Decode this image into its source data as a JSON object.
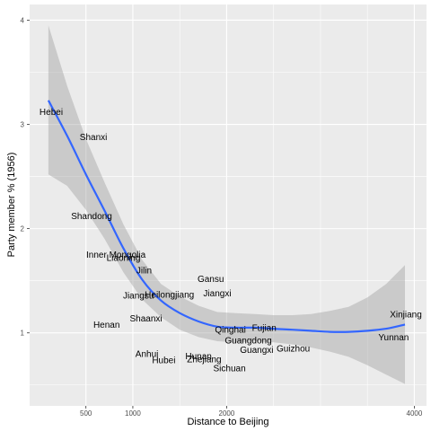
{
  "chart_data": {
    "type": "scatter",
    "title": "",
    "xlabel": "Distance to Beijing",
    "ylabel": "Party member % (1956)",
    "xlim": [
      -100,
      4130
    ],
    "ylim": [
      0.3,
      4.15
    ],
    "x_ticks": [
      500,
      1000,
      1500,
      2000,
      2500,
      3000,
      3500,
      4000
    ],
    "x_tick_labels": [
      "500",
      "1000",
      "2000",
      "4000"
    ],
    "x_tick_label_values": [
      500,
      1000,
      2000,
      4000
    ],
    "y_ticks": [
      1,
      2,
      3,
      4
    ],
    "y_tick_labels": [
      "1",
      "2",
      "3",
      "4"
    ],
    "grid": true,
    "colors": {
      "panel": "#ebebeb",
      "grid_major": "#ffffff",
      "ribbon": "#999999",
      "smooth_line": "#3366ff"
    },
    "points": [
      {
        "label": "Hebei",
        "x": 130,
        "y": 3.12
      },
      {
        "label": "Shanxi",
        "x": 580,
        "y": 2.88
      },
      {
        "label": "Shandong",
        "x": 560,
        "y": 2.12
      },
      {
        "label": "Inner Mongolia",
        "x": 820,
        "y": 1.75
      },
      {
        "label": "Liaoning",
        "x": 900,
        "y": 1.72
      },
      {
        "label": "Jilin",
        "x": 1120,
        "y": 1.6
      },
      {
        "label": "Gansu",
        "x": 1830,
        "y": 1.52
      },
      {
        "label": "Jiangsu",
        "x": 1060,
        "y": 1.36
      },
      {
        "label": "Heilongjiang",
        "x": 1390,
        "y": 1.37
      },
      {
        "label": "Jiangxi",
        "x": 1900,
        "y": 1.38
      },
      {
        "label": "Xinjiang",
        "x": 3910,
        "y": 1.18
      },
      {
        "label": "Henan",
        "x": 720,
        "y": 1.08
      },
      {
        "label": "Shaanxi",
        "x": 1140,
        "y": 1.14
      },
      {
        "label": "Fujian",
        "x": 2400,
        "y": 1.05
      },
      {
        "label": "Qinghai",
        "x": 2040,
        "y": 1.03
      },
      {
        "label": "Yunnan",
        "x": 3780,
        "y": 0.96
      },
      {
        "label": "Guangdong",
        "x": 2230,
        "y": 0.93
      },
      {
        "label": "Guangxi",
        "x": 2320,
        "y": 0.84
      },
      {
        "label": "Guizhou",
        "x": 2710,
        "y": 0.85
      },
      {
        "label": "Anhui",
        "x": 1150,
        "y": 0.8
      },
      {
        "label": "Hunan",
        "x": 1700,
        "y": 0.78
      },
      {
        "label": "Hubei",
        "x": 1330,
        "y": 0.74
      },
      {
        "label": "Zhejiang",
        "x": 1760,
        "y": 0.75
      },
      {
        "label": "Sichuan",
        "x": 2030,
        "y": 0.66
      }
    ],
    "smooth": {
      "x": [
        100,
        300,
        500,
        700,
        900,
        1100,
        1300,
        1500,
        1700,
        1900,
        2100,
        2300,
        2500,
        2700,
        2900,
        3100,
        3300,
        3500,
        3700,
        3900
      ],
      "y": [
        3.23,
        2.89,
        2.52,
        2.17,
        1.81,
        1.51,
        1.31,
        1.19,
        1.11,
        1.06,
        1.05,
        1.05,
        1.04,
        1.03,
        1.02,
        1.01,
        1.01,
        1.02,
        1.04,
        1.08
      ],
      "lower": [
        2.52,
        2.41,
        2.18,
        1.9,
        1.58,
        1.32,
        1.15,
        1.03,
        0.96,
        0.92,
        0.91,
        0.92,
        0.91,
        0.89,
        0.86,
        0.82,
        0.77,
        0.69,
        0.6,
        0.51
      ],
      "upper": [
        3.95,
        3.37,
        2.86,
        2.44,
        2.04,
        1.7,
        1.47,
        1.35,
        1.26,
        1.2,
        1.19,
        1.18,
        1.17,
        1.17,
        1.18,
        1.21,
        1.25,
        1.34,
        1.47,
        1.65
      ]
    }
  }
}
